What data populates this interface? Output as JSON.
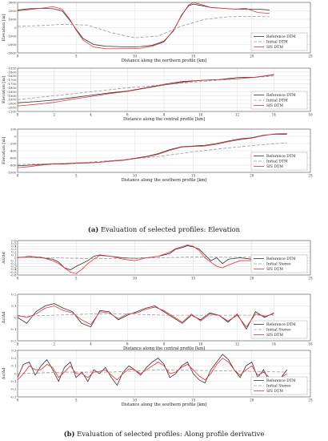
{
  "figure": {
    "caption_a_label": "(a)",
    "caption_a_text": "Evaluation of selected profiles: Elevation",
    "caption_b_label": "(b)",
    "caption_b_text": "Evaluation of selected profiles: Along profile derivative"
  },
  "colors": {
    "reference": "#333333",
    "initial": "#9a9a9a",
    "sfs": "#e8323a"
  },
  "chart_data": [
    {
      "type": "line",
      "xlabel": "Distance along the northern profile [km]",
      "ylabel": "Elevation [m]",
      "xlim": [
        0,
        25
      ],
      "ylim": [
        -3000,
        3000
      ],
      "xticks": [
        0,
        5,
        10,
        15,
        20,
        25
      ],
      "yticks": [
        -3000,
        -2000,
        -1000,
        0,
        1000,
        2000,
        3000
      ],
      "grid": true,
      "legend": "bottom-right",
      "series": [
        {
          "name": "Reference DTM",
          "style": "reference",
          "x": [
            0,
            1,
            2,
            3,
            3.8,
            4.5,
            5,
            5.6,
            6.5,
            7.5,
            8.5,
            9.5,
            10.5,
            11.5,
            12.5,
            13.3,
            14,
            14.6,
            15,
            15.8,
            16.5,
            17.5,
            18.5,
            19.5,
            20.5,
            21.5
          ],
          "y": [
            2100,
            2250,
            2300,
            2250,
            2000,
            800,
            -200,
            -1300,
            -2000,
            -2200,
            -2250,
            -2300,
            -2250,
            -2100,
            -1600,
            -400,
            1500,
            2600,
            2800,
            2600,
            2400,
            2300,
            2200,
            2200,
            2200,
            2100
          ]
        },
        {
          "name": "Initial DTM",
          "style": "initial",
          "x": [
            0,
            2,
            4,
            6,
            8,
            10,
            12,
            14,
            16,
            18,
            20,
            21.5
          ],
          "y": [
            150,
            250,
            400,
            300,
            -600,
            -1200,
            -1000,
            200,
            1000,
            1300,
            1350,
            1300
          ]
        },
        {
          "name": "SfS DTM",
          "style": "sfs",
          "x": [
            0,
            1,
            2,
            3,
            3.8,
            4.5,
            5,
            5.6,
            6.5,
            7.5,
            8.5,
            9.5,
            10.5,
            11.5,
            12.5,
            13.3,
            14,
            14.6,
            15,
            15.8,
            16.5,
            17.5,
            18.5,
            19.5,
            20.5,
            21.5
          ],
          "y": [
            2000,
            2150,
            2300,
            2500,
            2200,
            900,
            -300,
            -1500,
            -2300,
            -2500,
            -2500,
            -2500,
            -2450,
            -2200,
            -1700,
            -300,
            1400,
            2700,
            3000,
            2700,
            2400,
            2300,
            2200,
            2300,
            1800,
            1700
          ]
        }
      ]
    },
    {
      "type": "line",
      "xlabel": "Distance along the central profile [km]",
      "ylabel": "Elevation [m]",
      "xlim": [
        0,
        16
      ],
      "ylim": [
        -2100,
        -1550
      ],
      "xticks": [
        0,
        2,
        4,
        6,
        8,
        10,
        12,
        14,
        16
      ],
      "yticks": [
        -2100,
        -2050,
        -2000,
        -1950,
        -1900,
        -1850,
        -1800,
        -1750,
        -1700,
        -1650,
        -1600,
        -1550
      ],
      "grid": true,
      "legend": "bottom-right",
      "series": [
        {
          "name": "Reference DTM",
          "style": "reference",
          "x": [
            0,
            1,
            2,
            3,
            4,
            5,
            6,
            7,
            8,
            9,
            10,
            11,
            12,
            13,
            14
          ],
          "y": [
            -1990,
            -1975,
            -1955,
            -1925,
            -1895,
            -1865,
            -1840,
            -1800,
            -1755,
            -1720,
            -1705,
            -1695,
            -1670,
            -1665,
            -1635
          ]
        },
        {
          "name": "Initial DTM",
          "style": "initial",
          "x": [
            0,
            2,
            4,
            6,
            8,
            10,
            12,
            14
          ],
          "y": [
            -1950,
            -1900,
            -1850,
            -1800,
            -1760,
            -1720,
            -1685,
            -1650
          ]
        },
        {
          "name": "SfS DTM",
          "style": "sfs",
          "x": [
            0,
            1,
            2,
            3,
            4,
            5,
            6,
            7,
            8,
            9,
            10,
            11,
            12,
            13,
            14
          ],
          "y": [
            -2030,
            -2010,
            -1985,
            -1945,
            -1910,
            -1875,
            -1845,
            -1805,
            -1765,
            -1730,
            -1705,
            -1695,
            -1685,
            -1665,
            -1630
          ]
        }
      ]
    },
    {
      "type": "line",
      "xlabel": "Distance along the southern profile [km]",
      "ylabel": "Elevation [m]",
      "xlim": [
        0,
        25
      ],
      "ylim": [
        -1000,
        200
      ],
      "xticks": [
        0,
        5,
        10,
        15,
        20,
        25
      ],
      "yticks": [
        -1000,
        -800,
        -600,
        -400,
        -200,
        0,
        200
      ],
      "grid": true,
      "legend": "bottom-right",
      "series": [
        {
          "name": "Reference DTM",
          "style": "reference",
          "x": [
            0,
            1,
            2,
            3,
            4,
            5,
            6,
            7,
            8,
            9,
            10,
            11,
            12,
            13,
            14,
            15,
            16,
            17,
            18,
            19,
            20,
            21,
            22,
            23
          ],
          "y": [
            -820,
            -800,
            -780,
            -760,
            -760,
            -740,
            -730,
            -720,
            -680,
            -660,
            -610,
            -560,
            -480,
            -370,
            -290,
            -270,
            -250,
            -200,
            -130,
            -70,
            -40,
            30,
            60,
            60
          ]
        },
        {
          "name": "Initial DTM",
          "style": "initial",
          "x": [
            0,
            3,
            6,
            9,
            12,
            15,
            18,
            21,
            23
          ],
          "y": [
            -780,
            -760,
            -720,
            -650,
            -560,
            -430,
            -320,
            -230,
            -180
          ]
        },
        {
          "name": "SfS DTM",
          "style": "sfs",
          "x": [
            0,
            1,
            2,
            3,
            4,
            5,
            6,
            7,
            8,
            9,
            10,
            11,
            12,
            13,
            14,
            15,
            16,
            17,
            18,
            19,
            20,
            21,
            22,
            23
          ],
          "y": [
            -870,
            -840,
            -800,
            -770,
            -770,
            -750,
            -740,
            -720,
            -690,
            -670,
            -620,
            -570,
            -500,
            -390,
            -300,
            -280,
            -270,
            -220,
            -150,
            -90,
            -50,
            20,
            70,
            80
          ]
        }
      ]
    },
    {
      "type": "line",
      "xlabel": "",
      "ylabel": "Δz/Δd",
      "xlim": [
        0,
        25
      ],
      "ylim": [
        -0.6,
        0.6
      ],
      "xticks": [
        0,
        5,
        10,
        15,
        20,
        25
      ],
      "yticks": [
        -0.6,
        -0.5,
        -0.4,
        -0.3,
        -0.2,
        -0.1,
        0,
        0.1,
        0.2,
        0.3,
        0.4,
        0.5,
        0.6
      ],
      "grid": true,
      "legend": "bottom-right",
      "series": [
        {
          "name": "Reference DTM",
          "style": "reference",
          "x": [
            0,
            1,
            2,
            3,
            3.5,
            4,
            4.5,
            5,
            5.5,
            6,
            6.5,
            7,
            8,
            9,
            10,
            11,
            12,
            13,
            13.5,
            14,
            14.5,
            15,
            15.5,
            16,
            16.5,
            17,
            17.5,
            18,
            19,
            20,
            21,
            22
          ],
          "y": [
            0.02,
            0.02,
            0.0,
            -0.05,
            -0.15,
            -0.35,
            -0.42,
            -0.3,
            -0.2,
            -0.1,
            0.05,
            0.1,
            0.05,
            0.0,
            -0.02,
            0.0,
            0.05,
            0.15,
            0.3,
            0.35,
            0.42,
            0.38,
            0.3,
            0.1,
            -0.1,
            0.0,
            -0.2,
            -0.05,
            0.0,
            -0.05,
            0.05,
            0.0
          ]
        },
        {
          "name": "Initial Stereo",
          "style": "initial",
          "x": [
            0,
            3,
            6,
            9,
            12,
            15,
            18,
            21,
            22
          ],
          "y": [
            0.02,
            0.0,
            -0.03,
            -0.02,
            0.0,
            0.03,
            0.02,
            0.02,
            0.02
          ]
        },
        {
          "name": "SfS DTM",
          "style": "sfs",
          "x": [
            0,
            1,
            2,
            3,
            3.5,
            4,
            4.5,
            5,
            5.5,
            6,
            6.5,
            7,
            8,
            9,
            10,
            11,
            12,
            13,
            13.5,
            14,
            14.5,
            15,
            15.5,
            16,
            16.5,
            17,
            17.5,
            18,
            19,
            20,
            21,
            22
          ],
          "y": [
            0.0,
            0.05,
            0.02,
            -0.1,
            -0.2,
            -0.35,
            -0.5,
            -0.55,
            -0.4,
            -0.2,
            -0.05,
            0.08,
            0.05,
            -0.05,
            -0.1,
            0.0,
            0.05,
            0.2,
            0.32,
            0.38,
            0.45,
            0.4,
            0.25,
            0.0,
            -0.15,
            -0.3,
            -0.35,
            -0.25,
            -0.1,
            -0.1,
            0.0,
            -0.05
          ]
        }
      ]
    },
    {
      "type": "line",
      "xlabel": "Distance along the central profile [km]",
      "ylabel": "Δz/Δd",
      "xlim": [
        0,
        16
      ],
      "ylim": [
        -0.2,
        0.2
      ],
      "xticks": [
        0,
        2,
        4,
        6,
        8,
        10,
        12,
        14,
        16
      ],
      "yticks": [
        -0.2,
        -0.1,
        0,
        0.1,
        0.2
      ],
      "grid": true,
      "legend": "bottom-right",
      "series": [
        {
          "name": "Reference DTM",
          "style": "reference",
          "x": [
            0,
            0.5,
            1,
            1.5,
            2,
            2.5,
            3,
            3.5,
            4,
            4.5,
            5,
            5.5,
            6,
            6.5,
            7,
            7.5,
            8,
            8.5,
            9,
            9.5,
            10,
            10.5,
            11,
            11.5,
            12,
            12.5,
            13,
            13.5,
            14
          ],
          "y": [
            0.0,
            -0.05,
            0.05,
            0.1,
            0.12,
            0.08,
            0.05,
            -0.05,
            -0.08,
            0.06,
            0.05,
            -0.02,
            0.02,
            0.05,
            0.08,
            0.1,
            0.05,
            0.0,
            -0.05,
            0.02,
            -0.02,
            0.04,
            0.02,
            -0.04,
            0.03,
            -0.1,
            0.05,
            0.0,
            0.04
          ]
        },
        {
          "name": "Initial Stereo",
          "style": "initial",
          "x": [
            0,
            2,
            4,
            6,
            8,
            10,
            12,
            14
          ],
          "y": [
            0.01,
            0.02,
            0.03,
            0.03,
            0.02,
            0.02,
            0.02,
            0.02
          ]
        },
        {
          "name": "SfS DTM",
          "style": "sfs",
          "x": [
            0,
            0.5,
            1,
            1.5,
            2,
            2.5,
            3,
            3.5,
            4,
            4.5,
            5,
            5.5,
            6,
            6.5,
            7,
            7.5,
            8,
            8.5,
            9,
            9.5,
            10,
            10.5,
            11,
            11.5,
            12,
            12.5,
            13,
            13.5,
            14
          ],
          "y": [
            0.02,
            0.0,
            0.03,
            0.08,
            0.1,
            0.06,
            0.04,
            -0.02,
            -0.06,
            0.05,
            0.04,
            -0.01,
            0.03,
            0.04,
            0.07,
            0.09,
            0.06,
            0.01,
            -0.04,
            0.03,
            -0.03,
            0.03,
            0.02,
            -0.03,
            0.02,
            -0.08,
            0.03,
            0.01,
            0.03
          ]
        }
      ]
    },
    {
      "type": "line",
      "xlabel": "Distance along the southern profile [km]",
      "ylabel": "Δz/Δd",
      "xlim": [
        0,
        25
      ],
      "ylim": [
        -0.3,
        0.3
      ],
      "xticks": [
        0,
        5,
        10,
        15,
        20,
        25
      ],
      "yticks": [
        -0.3,
        -0.2,
        -0.1,
        0,
        0.1,
        0.2,
        0.3
      ],
      "grid": true,
      "legend": "bottom-right",
      "series": [
        {
          "name": "Reference DTM",
          "style": "reference",
          "x": [
            0,
            0.5,
            1,
            1.5,
            2,
            2.5,
            3,
            3.5,
            4,
            4.5,
            5,
            5.5,
            6,
            6.5,
            7,
            7.5,
            8,
            8.5,
            9,
            9.5,
            10,
            10.5,
            11,
            11.5,
            12,
            12.5,
            13,
            13.5,
            14,
            14.5,
            15,
            15.5,
            16,
            16.5,
            17,
            17.5,
            18,
            18.5,
            19,
            19.5,
            20,
            20.5,
            21,
            21.5,
            22,
            22.5,
            23
          ],
          "y": [
            -0.05,
            0.12,
            0.15,
            -0.02,
            0.1,
            0.18,
            0.05,
            -0.1,
            0.08,
            0.15,
            -0.05,
            0.02,
            -0.1,
            0.05,
            0.0,
            0.08,
            -0.05,
            -0.15,
            0.02,
            0.1,
            0.05,
            -0.02,
            0.08,
            0.15,
            0.2,
            0.12,
            -0.05,
            0.0,
            0.1,
            0.15,
            0.0,
            -0.08,
            -0.12,
            0.05,
            0.15,
            0.25,
            0.18,
            0.05,
            -0.05,
            0.1,
            0.15,
            -0.05,
            0.05,
            -0.1,
            -0.15,
            -0.05,
            0.05
          ]
        },
        {
          "name": "Initial Stereo",
          "style": "initial",
          "x": [
            0,
            4,
            8,
            12,
            16,
            20,
            23
          ],
          "y": [
            0.0,
            0.02,
            0.02,
            0.05,
            0.04,
            0.03,
            0.02
          ]
        },
        {
          "name": "SfS DTM",
          "style": "sfs",
          "x": [
            0,
            0.5,
            1,
            1.5,
            2,
            2.5,
            3,
            3.5,
            4,
            4.5,
            5,
            5.5,
            6,
            6.5,
            7,
            7.5,
            8,
            8.5,
            9,
            9.5,
            10,
            10.5,
            11,
            11.5,
            12,
            12.5,
            13,
            13.5,
            14,
            14.5,
            15,
            15.5,
            16,
            16.5,
            17,
            17.5,
            18,
            18.5,
            19,
            19.5,
            20,
            20.5,
            21,
            21.5,
            22,
            22.5,
            23
          ],
          "y": [
            -0.08,
            0.0,
            0.1,
            0.05,
            0.05,
            0.12,
            0.08,
            -0.05,
            0.02,
            0.1,
            0.0,
            0.0,
            -0.05,
            0.02,
            0.03,
            0.05,
            -0.02,
            -0.08,
            0.0,
            0.06,
            0.05,
            0.0,
            0.05,
            0.1,
            0.15,
            0.1,
            0.0,
            0.02,
            0.08,
            0.12,
            0.05,
            -0.03,
            -0.08,
            0.0,
            0.12,
            0.2,
            0.15,
            0.05,
            -0.02,
            0.05,
            0.1,
            -0.02,
            0.02,
            -0.05,
            -0.1,
            -0.05,
            0.0
          ]
        }
      ]
    }
  ]
}
